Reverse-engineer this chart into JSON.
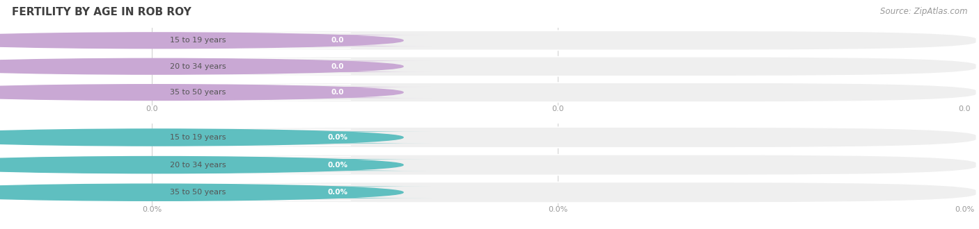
{
  "title": "FERTILITY BY AGE IN ROB ROY",
  "source": "Source: ZipAtlas.com",
  "top_section": {
    "categories": [
      "15 to 19 years",
      "20 to 34 years",
      "35 to 50 years"
    ],
    "values": [
      0.0,
      0.0,
      0.0
    ],
    "bar_color": "#c9a8d4",
    "axis_tick_labels": [
      "0.0",
      "0.0",
      "0.0"
    ]
  },
  "bottom_section": {
    "categories": [
      "15 to 19 years",
      "20 to 34 years",
      "35 to 50 years"
    ],
    "values": [
      0.0,
      0.0,
      0.0
    ],
    "bar_color": "#5fbfc0",
    "axis_tick_labels": [
      "0.0%",
      "0.0%",
      "0.0%"
    ]
  },
  "background_color": "#ffffff",
  "bar_bg_color": "#efefef",
  "bar_bg_color_alt": "#e8e8e8",
  "title_color": "#404040",
  "title_fontsize": 11,
  "source_color": "#999999",
  "source_fontsize": 8.5
}
